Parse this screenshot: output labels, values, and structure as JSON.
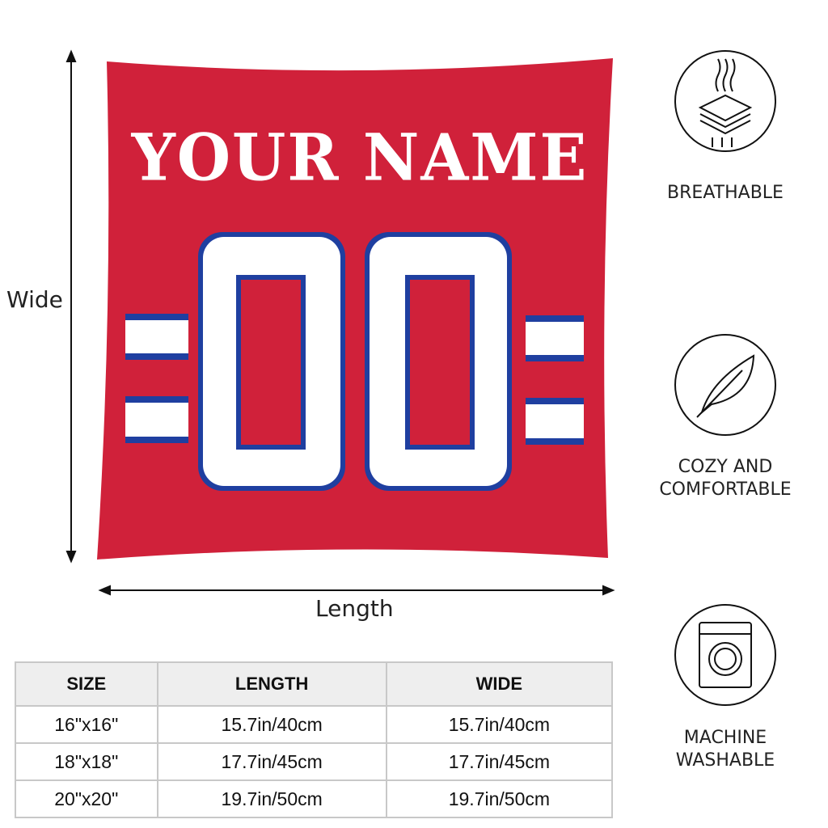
{
  "pillow": {
    "name_text": "YOUR NAME",
    "number": "00",
    "colors": {
      "body": "#d0213a",
      "stripe_blue": "#1f3fa0",
      "white": "#ffffff"
    }
  },
  "dimensions": {
    "height_label": "Wide",
    "width_label": "Length"
  },
  "features": [
    {
      "icon": "breathable-layers-icon",
      "lines": [
        "BREATHABLE"
      ]
    },
    {
      "icon": "feather-icon",
      "lines": [
        "COZY AND",
        "COMFORTABLE"
      ]
    },
    {
      "icon": "washing-machine-icon",
      "lines": [
        "MACHINE",
        "WASHABLE"
      ]
    }
  ],
  "size_table": {
    "headers": [
      "SIZE",
      "LENGTH",
      "WIDE"
    ],
    "rows": [
      [
        "16\"x16\"",
        "15.7in/40cm",
        "15.7in/40cm"
      ],
      [
        "18\"x18\"",
        "17.7in/45cm",
        "17.7in/45cm"
      ],
      [
        "20\"x20\"",
        "19.7in/50cm",
        "19.7in/50cm"
      ]
    ]
  }
}
